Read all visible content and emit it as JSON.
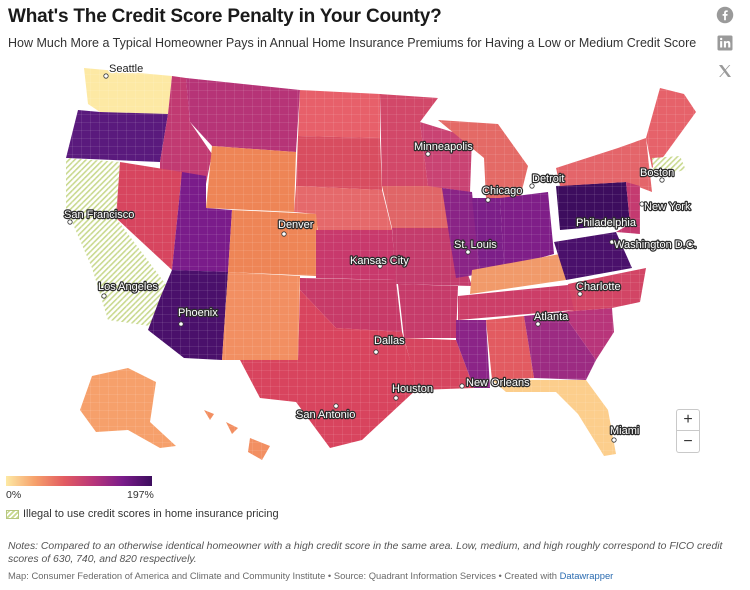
{
  "header": {
    "title": "What's The Credit Score Penalty in Your County?",
    "subtitle": "How Much More a Typical Homeowner Pays in Annual Home Insurance Premiums for Having a Low or Medium Credit Score"
  },
  "social": [
    {
      "name": "facebook-icon"
    },
    {
      "name": "linkedin-icon"
    },
    {
      "name": "x-icon"
    }
  ],
  "map": {
    "cities": [
      {
        "name": "Seattle"
      },
      {
        "name": "San Francisco"
      },
      {
        "name": "Los Angeles"
      },
      {
        "name": "Phoenix"
      },
      {
        "name": "Denver"
      },
      {
        "name": "Minneapolis"
      },
      {
        "name": "Chicago"
      },
      {
        "name": "Detroit"
      },
      {
        "name": "Boston"
      },
      {
        "name": "New York"
      },
      {
        "name": "Philadelphia"
      },
      {
        "name": "Washington D.C."
      },
      {
        "name": "St. Louis"
      },
      {
        "name": "Kansas City"
      },
      {
        "name": "Charlotte"
      },
      {
        "name": "Atlanta"
      },
      {
        "name": "Dallas"
      },
      {
        "name": "Houston"
      },
      {
        "name": "New Orleans"
      },
      {
        "name": "San Antonio"
      },
      {
        "name": "Miami"
      }
    ],
    "colors": {
      "low": "#fde9a4",
      "mid1": "#f6a06b",
      "mid2": "#e25b61",
      "mid3": "#b8357a",
      "high1": "#7a1c8a",
      "high2": "#3d0d5e",
      "illegal_hatch": "#c9d98f"
    }
  },
  "controls": {
    "zoom_in": "+",
    "zoom_out": "−"
  },
  "legend": {
    "min_label": "0%",
    "max_label": "197%",
    "hatch_label": "Illegal to use credit scores in home insurance pricing"
  },
  "notes": "Notes: Compared to an otherwise identical homeowner with a high credit score in the same area. Low, medium, and high roughly correspond to FICO credit scores of 630, 740, and 820 respectively.",
  "source": {
    "text": "Map: Consumer Federation of America and Climate and Community Institute • Source: Quadrant Information Services • Created with ",
    "link": "Datawrapper"
  }
}
